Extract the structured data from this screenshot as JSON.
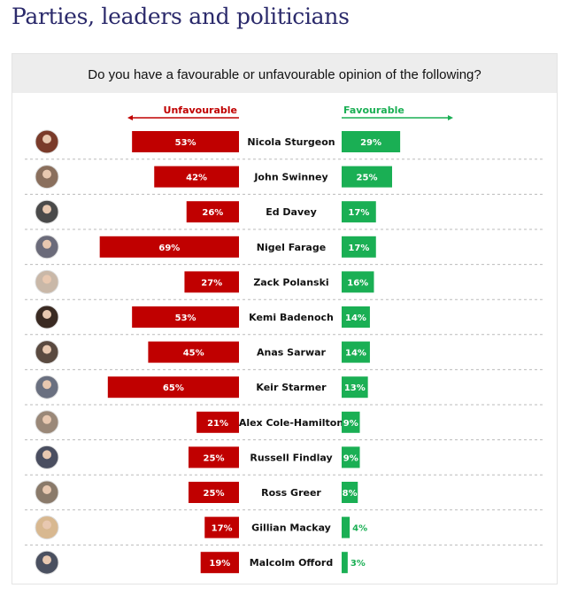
{
  "page_title": "Parties, leaders and politicians",
  "chart_data": {
    "type": "bar",
    "title": "Do you have a favourable or unfavourable opinion of the following?",
    "legend": {
      "unfavourable": "Unfavourable",
      "favourable": "Favourable"
    },
    "colors": {
      "unfavourable": "#c00000",
      "favourable": "#1aaf54"
    },
    "categories": [
      "Nicola Sturgeon",
      "John Swinney",
      "Ed Davey",
      "Nigel Farage",
      "Zack Polanski",
      "Kemi Badenoch",
      "Anas Sarwar",
      "Keir Starmer",
      "Alex Cole-Hamilton",
      "Russell Findlay",
      "Ross Greer",
      "Gillian Mackay",
      "Malcolm Offord"
    ],
    "series": [
      {
        "name": "Unfavourable",
        "unit": "%",
        "values": [
          53,
          42,
          26,
          69,
          27,
          53,
          45,
          65,
          21,
          25,
          25,
          17,
          19
        ]
      },
      {
        "name": "Favourable",
        "unit": "%",
        "values": [
          29,
          25,
          17,
          17,
          16,
          14,
          14,
          13,
          9,
          9,
          8,
          4,
          3
        ]
      }
    ]
  }
}
